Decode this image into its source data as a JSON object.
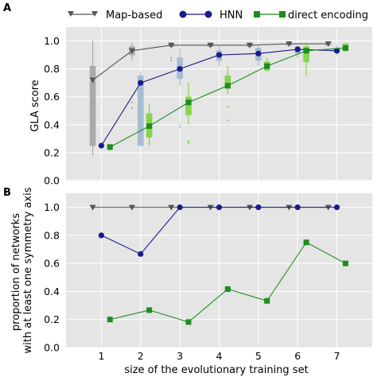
{
  "panel_labels": [
    "A",
    "B"
  ],
  "legend": {
    "map_based": "Map-based",
    "hnn": "HNN",
    "direct": "direct encoding"
  },
  "colors": {
    "map_based": "#555555",
    "hnn": "#1a1a8c",
    "direct": "#1e8c1e",
    "box_map": "#a9a9a9",
    "box_hnn": "#a8bcd2",
    "box_direct": "#86d44c",
    "box_hnn_light": "#bcd2e6",
    "box_direct_light": "#a6e06a",
    "panel_bg": "#e5e5e5",
    "grid": "#ffffff"
  },
  "chart_data": [
    {
      "type": "line",
      "panel": "A",
      "title": "",
      "xlabel": "",
      "ylabel": "GLA score",
      "x": [
        1,
        2,
        3,
        4,
        5,
        6,
        7
      ],
      "xticks": [
        "1",
        "2",
        "3",
        "4",
        "5",
        "6",
        "7"
      ],
      "xlim": [
        0.1,
        7.9
      ],
      "ylim": [
        0,
        1.1
      ],
      "yticks": [
        "0.0",
        "0.2",
        "0.4",
        "0.6",
        "0.8",
        "1.0"
      ],
      "grid": true,
      "legend_position": "top",
      "series": [
        {
          "name": "Map-based",
          "marker": "triangle-down",
          "x": [
            0.78,
            1.78,
            2.78,
            3.78,
            4.78,
            5.78,
            6.78
          ],
          "values": [
            0.72,
            0.93,
            0.97,
            0.97,
            0.97,
            0.98,
            0.98
          ]
        },
        {
          "name": "HNN",
          "marker": "circle",
          "x": [
            1.0,
            2.0,
            3.0,
            4.0,
            5.0,
            6.0,
            7.0
          ],
          "values": [
            0.25,
            0.7,
            0.8,
            0.9,
            0.91,
            0.94,
            0.93
          ]
        },
        {
          "name": "direct encoding",
          "marker": "square",
          "x": [
            1.22,
            2.22,
            3.22,
            4.22,
            5.22,
            6.22,
            7.22
          ],
          "values": [
            0.24,
            0.39,
            0.56,
            0.68,
            0.82,
            0.93,
            0.95
          ]
        }
      ],
      "boxes": [
        {
          "group": "Map-based",
          "x": 0.78,
          "whisker_low": 0.18,
          "q1": 0.25,
          "median": 0.72,
          "q3": 0.82,
          "whisker_high": 1.0
        },
        {
          "group": "Map-based",
          "x": 1.78,
          "whisker_low": 0.86,
          "q1": 0.9,
          "median": 0.93,
          "q3": 0.96,
          "whisker_high": 0.99
        },
        {
          "group": "Map-based",
          "x": 2.78,
          "whisker_low": 0.95,
          "q1": 0.96,
          "median": 0.97,
          "q3": 0.98,
          "whisker_high": 0.99
        },
        {
          "group": "Map-based",
          "x": 3.78,
          "whisker_low": 0.95,
          "q1": 0.96,
          "median": 0.97,
          "q3": 0.98,
          "whisker_high": 0.99
        },
        {
          "group": "Map-based",
          "x": 4.78,
          "whisker_low": 0.95,
          "q1": 0.96,
          "median": 0.97,
          "q3": 0.98,
          "whisker_high": 0.99
        },
        {
          "group": "Map-based",
          "x": 5.78,
          "whisker_low": 0.96,
          "q1": 0.97,
          "median": 0.98,
          "q3": 0.985,
          "whisker_high": 0.99
        },
        {
          "group": "Map-based",
          "x": 6.78,
          "whisker_low": 0.96,
          "q1": 0.97,
          "median": 0.98,
          "q3": 0.985,
          "whisker_high": 0.99
        },
        {
          "group": "HNN",
          "x": 1.0,
          "whisker_low": 0.24,
          "q1": 0.245,
          "median": 0.25,
          "q3": 0.255,
          "whisker_high": 0.26
        },
        {
          "group": "HNN",
          "x": 2.0,
          "whisker_low": 0.25,
          "q1": 0.25,
          "median": 0.7,
          "q3": 0.75,
          "whisker_high": 0.78
        },
        {
          "group": "HNN",
          "x": 3.0,
          "whisker_low": 0.68,
          "q1": 0.73,
          "median": 0.8,
          "q3": 0.88,
          "whisker_high": 0.95
        },
        {
          "group": "HNN",
          "x": 4.0,
          "whisker_low": 0.82,
          "q1": 0.86,
          "median": 0.9,
          "q3": 0.93,
          "whisker_high": 0.96
        },
        {
          "group": "HNN",
          "x": 5.0,
          "whisker_low": 0.82,
          "q1": 0.86,
          "median": 0.91,
          "q3": 0.95,
          "whisker_high": 0.97
        },
        {
          "group": "HNN",
          "x": 6.0,
          "whisker_low": 0.88,
          "q1": 0.91,
          "median": 0.94,
          "q3": 0.96,
          "whisker_high": 0.97
        },
        {
          "group": "HNN",
          "x": 7.0,
          "whisker_low": 0.9,
          "q1": 0.92,
          "median": 0.93,
          "q3": 0.95,
          "whisker_high": 0.97
        },
        {
          "group": "direct encoding",
          "x": 1.22,
          "whisker_low": 0.23,
          "q1": 0.235,
          "median": 0.24,
          "q3": 0.245,
          "whisker_high": 0.25
        },
        {
          "group": "direct encoding",
          "x": 2.22,
          "whisker_low": 0.25,
          "q1": 0.31,
          "median": 0.39,
          "q3": 0.48,
          "whisker_high": 0.55
        },
        {
          "group": "direct encoding",
          "x": 3.22,
          "whisker_low": 0.4,
          "q1": 0.47,
          "median": 0.56,
          "q3": 0.6,
          "whisker_high": 0.7
        },
        {
          "group": "direct encoding",
          "x": 4.22,
          "whisker_low": 0.62,
          "q1": 0.66,
          "median": 0.68,
          "q3": 0.75,
          "whisker_high": 0.82
        },
        {
          "group": "direct encoding",
          "x": 5.22,
          "whisker_low": 0.78,
          "q1": 0.79,
          "median": 0.82,
          "q3": 0.85,
          "whisker_high": 0.88
        },
        {
          "group": "direct encoding",
          "x": 6.22,
          "whisker_low": 0.75,
          "q1": 0.85,
          "median": 0.93,
          "q3": 0.96,
          "whisker_high": 0.98
        },
        {
          "group": "direct encoding",
          "x": 7.22,
          "whisker_low": 0.92,
          "q1": 0.93,
          "median": 0.95,
          "q3": 0.98,
          "whisker_high": 0.99
        }
      ],
      "outliers": [
        {
          "group": "Map-based",
          "x": 1.78,
          "values": [
            0.52,
            0.56
          ]
        },
        {
          "group": "Map-based",
          "x": 2.78,
          "values": [
            0.86,
            0.88
          ]
        },
        {
          "group": "HNN",
          "x": 3.0,
          "values": [
            0.38,
            0.4
          ]
        },
        {
          "group": "direct encoding",
          "x": 1.22,
          "values": [
            0.22
          ]
        },
        {
          "group": "direct encoding",
          "x": 2.22,
          "values": [
            0.27
          ]
        },
        {
          "group": "direct encoding",
          "x": 3.22,
          "values": [
            0.27,
            0.28
          ]
        },
        {
          "group": "direct encoding",
          "x": 4.22,
          "values": [
            0.43,
            0.53
          ]
        }
      ]
    },
    {
      "type": "line",
      "panel": "B",
      "title": "",
      "xlabel": "size of the evolutionary training set",
      "ylabel": "proportion of networks\nwith at least one symmetry axis",
      "x": [
        1,
        2,
        3,
        4,
        5,
        6,
        7
      ],
      "xticks": [
        "1",
        "2",
        "3",
        "4",
        "5",
        "6",
        "7"
      ],
      "xlim": [
        0.1,
        7.9
      ],
      "ylim": [
        0,
        1.1
      ],
      "yticks": [
        "0.0",
        "0.2",
        "0.4",
        "0.6",
        "0.8",
        "1.0"
      ],
      "grid": true,
      "series": [
        {
          "name": "Map-based",
          "marker": "triangle-down",
          "x": [
            0.78,
            1.78,
            2.78,
            3.78,
            4.78,
            5.78,
            6.78
          ],
          "values": [
            1.0,
            1.0,
            1.0,
            1.0,
            1.0,
            1.0,
            1.0
          ]
        },
        {
          "name": "HNN",
          "marker": "circle",
          "x": [
            1.0,
            2.0,
            3.0,
            4.0,
            5.0,
            6.0,
            7.0
          ],
          "values": [
            0.8,
            0.667,
            1.0,
            1.0,
            1.0,
            1.0,
            1.0
          ]
        },
        {
          "name": "direct encoding",
          "marker": "square",
          "x": [
            1.22,
            2.22,
            3.22,
            4.22,
            5.22,
            6.22,
            7.22
          ],
          "values": [
            0.2,
            0.267,
            0.182,
            0.417,
            0.333,
            0.75,
            0.6
          ]
        }
      ]
    }
  ]
}
